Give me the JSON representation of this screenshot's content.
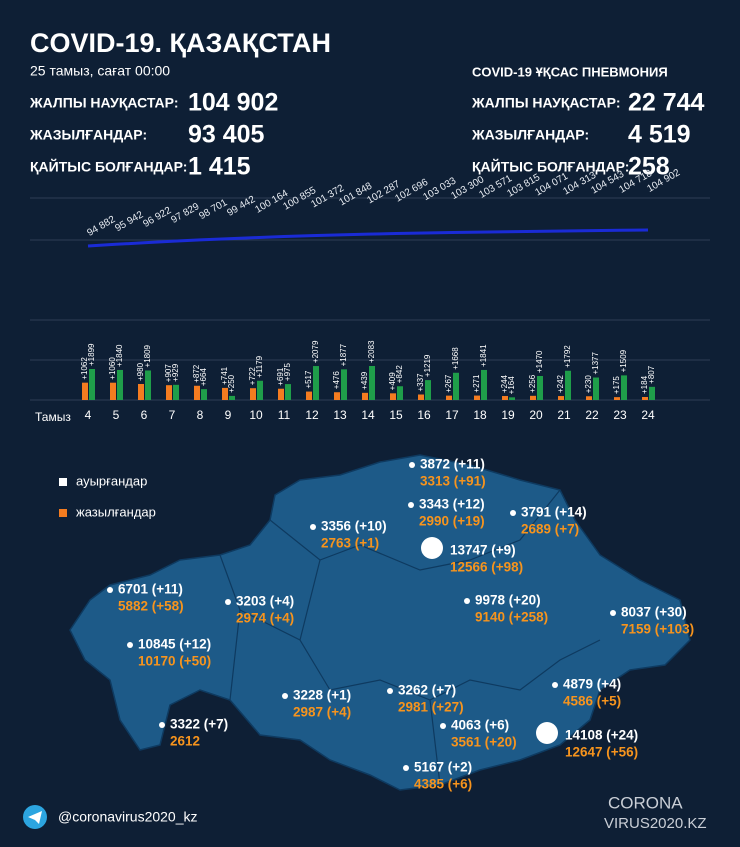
{
  "header": {
    "title": "COVID-19. ҚАЗАҚСТАН",
    "date": "25 тамыз, сағат 00:00"
  },
  "stats": [
    {
      "label": "ЖАЛПЫ НАУҚАСТАР:",
      "value": "104 902"
    },
    {
      "label": "ЖАЗЫЛҒАНДАР:",
      "value": "93 405"
    },
    {
      "label": "ҚАЙТЫС БОЛҒАНДАР:",
      "value": "1 415"
    }
  ],
  "pneumonia": {
    "title": "COVID-19 ҰҚСАС ПНЕВМОНИЯ",
    "stats": [
      {
        "label": "ЖАЛПЫ НАУҚАСТАР:",
        "value": "22 744"
      },
      {
        "label": "ЖАЗЫЛҒАНДАР:",
        "value": "4 519"
      },
      {
        "label": "ҚАЙТЫС БОЛҒАНДАР:",
        "value": "258"
      }
    ]
  },
  "chart_data": [
    {
      "type": "line",
      "color": "#1a2bd6",
      "categories": [
        "4",
        "5",
        "6",
        "7",
        "8",
        "9",
        "10",
        "11",
        "12",
        "13",
        "14",
        "15",
        "16",
        "17",
        "18",
        "19",
        "20",
        "21",
        "22",
        "23",
        "24"
      ],
      "values": [
        94882,
        95942,
        96922,
        97829,
        98701,
        99442,
        100164,
        100855,
        101372,
        101848,
        102287,
        102696,
        103033,
        103300,
        103571,
        103815,
        104071,
        104313,
        104543,
        104718,
        104902
      ],
      "value_labels": [
        "94 882",
        "95 942",
        "96 922",
        "97 829",
        "98 701",
        "99 442",
        "100 164",
        "100 855",
        "101 372",
        "101 848",
        "102 287",
        "102 696",
        "103 033",
        "103 300",
        "103 571",
        "103 815",
        "104 071",
        "104 313",
        "104 543",
        "104 718",
        "104 902"
      ]
    },
    {
      "type": "bar",
      "x_label": "Тамыз",
      "categories": [
        "4",
        "5",
        "6",
        "7",
        "8",
        "9",
        "10",
        "11",
        "12",
        "13",
        "14",
        "15",
        "16",
        "17",
        "18",
        "19",
        "20",
        "21",
        "22",
        "23",
        "24"
      ],
      "series": [
        {
          "color": "#f47c20",
          "values": [
            1062,
            1060,
            980,
            907,
            872,
            741,
            722,
            691,
            517,
            476,
            439,
            409,
            337,
            267,
            271,
            244,
            256,
            242,
            230,
            175,
            184
          ],
          "value_labels": [
            "+1062",
            "+1060",
            "+980",
            "+907",
            "+872",
            "+741",
            "+722",
            "+691",
            "+517",
            "+476",
            "+439",
            "+409",
            "+337",
            "+267",
            "+271",
            "+244",
            "+256",
            "+242",
            "+230",
            "+175",
            "+184"
          ]
        },
        {
          "color": "#1f9e4a",
          "values": [
            1899,
            1840,
            1809,
            929,
            664,
            250,
            1179,
            975,
            2079,
            1877,
            2083,
            842,
            1219,
            1668,
            1841,
            164,
            1470,
            1792,
            1377,
            1509,
            807
          ],
          "value_labels": [
            "+1899",
            "+1840",
            "+1809",
            "+929",
            "+664",
            "+250",
            "+1179",
            "+975",
            "+2079",
            "+1877",
            "+2083",
            "+842",
            "+1219",
            "+1668",
            "+1841",
            "+164",
            "+1470",
            "+1792",
            "+1377",
            "+1509",
            "+807"
          ]
        }
      ]
    }
  ],
  "map": {
    "legend": [
      "ауырғандар",
      "жазылғандар"
    ],
    "regions": [
      {
        "cases": "3872 (+11)",
        "recovered": "3313 (+91)"
      },
      {
        "cases": "3343 (+12)",
        "recovered": "2990 (+19)"
      },
      {
        "cases": "3791 (+14)",
        "recovered": "2689 (+7)"
      },
      {
        "cases": "3356 (+10)",
        "recovered": "2763 (+1)"
      },
      {
        "cases": "13747 (+9)",
        "recovered": "12566 (+98)"
      },
      {
        "cases": "6701 (+11)",
        "recovered": "5882 (+58)"
      },
      {
        "cases": "3203 (+4)",
        "recovered": "2974 (+4)"
      },
      {
        "cases": "9978 (+20)",
        "recovered": "9140 (+258)"
      },
      {
        "cases": "8037 (+30)",
        "recovered": "7159 (+103)"
      },
      {
        "cases": "10845 (+12)",
        "recovered": "10170 (+50)"
      },
      {
        "cases": "3228 (+1)",
        "recovered": "2987 (+4)"
      },
      {
        "cases": "3262 (+7)",
        "recovered": "2981 (+27)"
      },
      {
        "cases": "4879 (+4)",
        "recovered": "4586 (+5)"
      },
      {
        "cases": "3322 (+7)",
        "recovered": "2612"
      },
      {
        "cases": "4063 (+6)",
        "recovered": "3561 (+20)"
      },
      {
        "cases": "14108 (+24)",
        "recovered": "12647 (+56)"
      },
      {
        "cases": "5167 (+2)",
        "recovered": "4385 (+6)"
      }
    ]
  },
  "footer": {
    "handle": "@coronavirus2020_kz",
    "logo_top": "CORONA",
    "logo_bottom": "VIRUS2020.KZ"
  }
}
